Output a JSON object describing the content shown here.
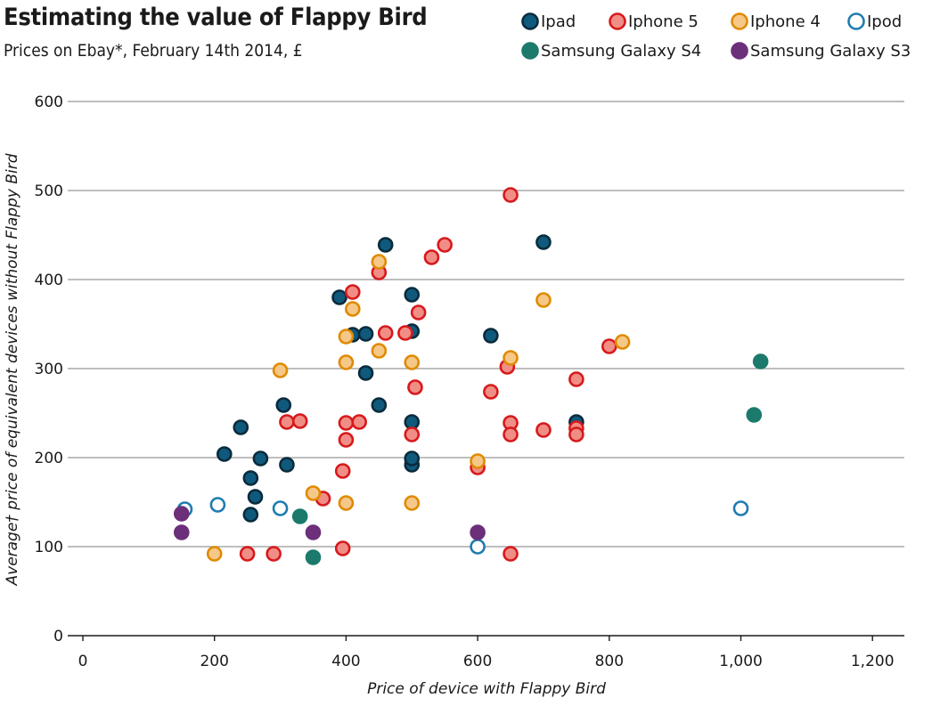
{
  "chart_data": {
    "type": "scatter",
    "title": "Estimating the value of Flappy Bird",
    "subtitle": "Prices on Ebay*, February 14th 2014, £",
    "xlabel": "Price of device with Flappy Bird",
    "ylabel": "Average† price of equivalent devices without Flappy Bird",
    "xlim": [
      -15,
      1250
    ],
    "ylim": [
      0,
      600
    ],
    "x_ticks": [
      0,
      200,
      400,
      600,
      800,
      1000,
      1200
    ],
    "x_tick_labels": [
      "0",
      "200",
      "400",
      "600",
      "800",
      "1,000",
      "1,200"
    ],
    "y_ticks": [
      0,
      100,
      200,
      300,
      400,
      500,
      600
    ],
    "y_tick_labels": [
      "0",
      "100",
      "200",
      "300",
      "400",
      "500",
      "600"
    ],
    "grid": "horizontal",
    "legend_position": "top-right",
    "series": [
      {
        "name": "Ipad",
        "style": {
          "fill": "#0f5a7c",
          "stroke": "#0a2b3c",
          "hollow": false
        },
        "points": [
          [
            215,
            204
          ],
          [
            240,
            234
          ],
          [
            255,
            136
          ],
          [
            255,
            177
          ],
          [
            262,
            156
          ],
          [
            270,
            199
          ],
          [
            305,
            259
          ],
          [
            310,
            192
          ],
          [
            390,
            380
          ],
          [
            410,
            338
          ],
          [
            430,
            339
          ],
          [
            430,
            295
          ],
          [
            450,
            259
          ],
          [
            460,
            439
          ],
          [
            500,
            383
          ],
          [
            500,
            342
          ],
          [
            500,
            240
          ],
          [
            500,
            192
          ],
          [
            500,
            199
          ],
          [
            620,
            337
          ],
          [
            700,
            442
          ],
          [
            750,
            240
          ]
        ]
      },
      {
        "name": "Iphone 5",
        "style": {
          "fill": "#f08e86",
          "stroke": "#d7191c",
          "hollow": false
        },
        "points": [
          [
            250,
            92
          ],
          [
            290,
            92
          ],
          [
            310,
            240
          ],
          [
            330,
            241
          ],
          [
            365,
            154
          ],
          [
            395,
            98
          ],
          [
            395,
            185
          ],
          [
            400,
            239
          ],
          [
            400,
            220
          ],
          [
            410,
            386
          ],
          [
            420,
            240
          ],
          [
            450,
            408
          ],
          [
            460,
            340
          ],
          [
            490,
            340
          ],
          [
            500,
            226
          ],
          [
            505,
            279
          ],
          [
            510,
            363
          ],
          [
            530,
            425
          ],
          [
            550,
            439
          ],
          [
            600,
            189
          ],
          [
            620,
            274
          ],
          [
            645,
            302
          ],
          [
            650,
            495
          ],
          [
            650,
            239
          ],
          [
            650,
            226
          ],
          [
            650,
            92
          ],
          [
            700,
            231
          ],
          [
            750,
            288
          ],
          [
            750,
            233
          ],
          [
            750,
            226
          ],
          [
            800,
            325
          ]
        ]
      },
      {
        "name": "Iphone 4",
        "style": {
          "fill": "#f5c888",
          "stroke": "#e08a00",
          "hollow": false
        },
        "points": [
          [
            200,
            92
          ],
          [
            300,
            298
          ],
          [
            350,
            160
          ],
          [
            400,
            336
          ],
          [
            400,
            307
          ],
          [
            400,
            149
          ],
          [
            410,
            367
          ],
          [
            450,
            420
          ],
          [
            450,
            320
          ],
          [
            500,
            307
          ],
          [
            500,
            149
          ],
          [
            600,
            196
          ],
          [
            650,
            312
          ],
          [
            700,
            377
          ],
          [
            820,
            330
          ]
        ]
      },
      {
        "name": "Ipod",
        "style": {
          "fill": "#ffffff",
          "stroke": "#1f7cb0",
          "hollow": true
        },
        "points": [
          [
            155,
            142
          ],
          [
            205,
            147
          ],
          [
            300,
            143
          ],
          [
            600,
            100
          ],
          [
            1000,
            143
          ]
        ]
      },
      {
        "name": "Samsung Galaxy S4",
        "style": {
          "fill": "#1b7a6b",
          "stroke": "#1b7a6b",
          "hollow": false
        },
        "points": [
          [
            330,
            134
          ],
          [
            350,
            88
          ],
          [
            1020,
            248
          ],
          [
            1030,
            308
          ]
        ]
      },
      {
        "name": "Samsung Galaxy S3",
        "style": {
          "fill": "#6c2f7a",
          "stroke": "#6c2f7a",
          "hollow": false
        },
        "points": [
          [
            150,
            137
          ],
          [
            150,
            116
          ],
          [
            350,
            116
          ],
          [
            600,
            116
          ]
        ]
      }
    ]
  }
}
